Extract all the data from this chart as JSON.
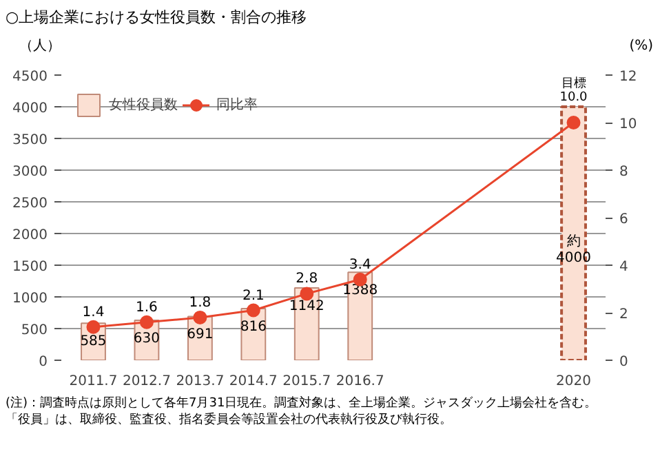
{
  "chart_data": {
    "type": "bar",
    "title": "○上場企業における女性役員数・割合の推移",
    "categories": [
      "2011.7",
      "2012.7",
      "2013.7",
      "2014.7",
      "2015.7",
      "2016.7",
      null,
      null,
      null,
      "2020"
    ],
    "series": [
      {
        "name": "女性役員数",
        "color": "#fbe0d3",
        "values": [
          585,
          630,
          691,
          816,
          1142,
          1388,
          null,
          null,
          null,
          null
        ],
        "value_labels": [
          "585",
          "630",
          "691",
          "816",
          "1142",
          "1388",
          null,
          null,
          null,
          null
        ]
      },
      {
        "color": "#fbe0d3",
        "line_style": "dashed",
        "values": [
          null,
          null,
          null,
          null,
          null,
          null,
          null,
          null,
          null,
          4000
        ],
        "value_labels": [
          null,
          null,
          null,
          null,
          null,
          null,
          null,
          null,
          null,
          "約\n4000"
        ]
      },
      {
        "name": "同比率",
        "type": "line",
        "axis": "y2",
        "color": "#e8452c",
        "marker": "circle",
        "values": [
          1.4,
          1.6,
          1.8,
          2.1,
          2.8,
          3.4,
          null,
          null,
          null,
          10.0
        ],
        "value_labels": [
          "1.4",
          "1.6",
          "1.8",
          "2.1",
          "2.8",
          "3.4",
          null,
          null,
          null,
          "目標\n10.0"
        ]
      }
    ],
    "ylabel": "（人）",
    "y2label": "(%)",
    "ylim": [
      0,
      4500
    ],
    "yticks": [
      0,
      500,
      1000,
      1500,
      2000,
      2500,
      3000,
      3500,
      4000,
      4500
    ],
    "y2lim": [
      0,
      12
    ],
    "y2ticks": [
      0,
      2,
      4,
      6,
      8,
      10,
      12
    ],
    "grid": "y",
    "legend": "top left",
    "annotations": [
      "(注)：調査時点は原則として各年7月31日現在。調査対象は、全上場企業。ジャスダック上場会社を含む。",
      "「役員」は、取締役、監査役、指名委員会等設置会社の代表執行役及び執行役。"
    ]
  }
}
